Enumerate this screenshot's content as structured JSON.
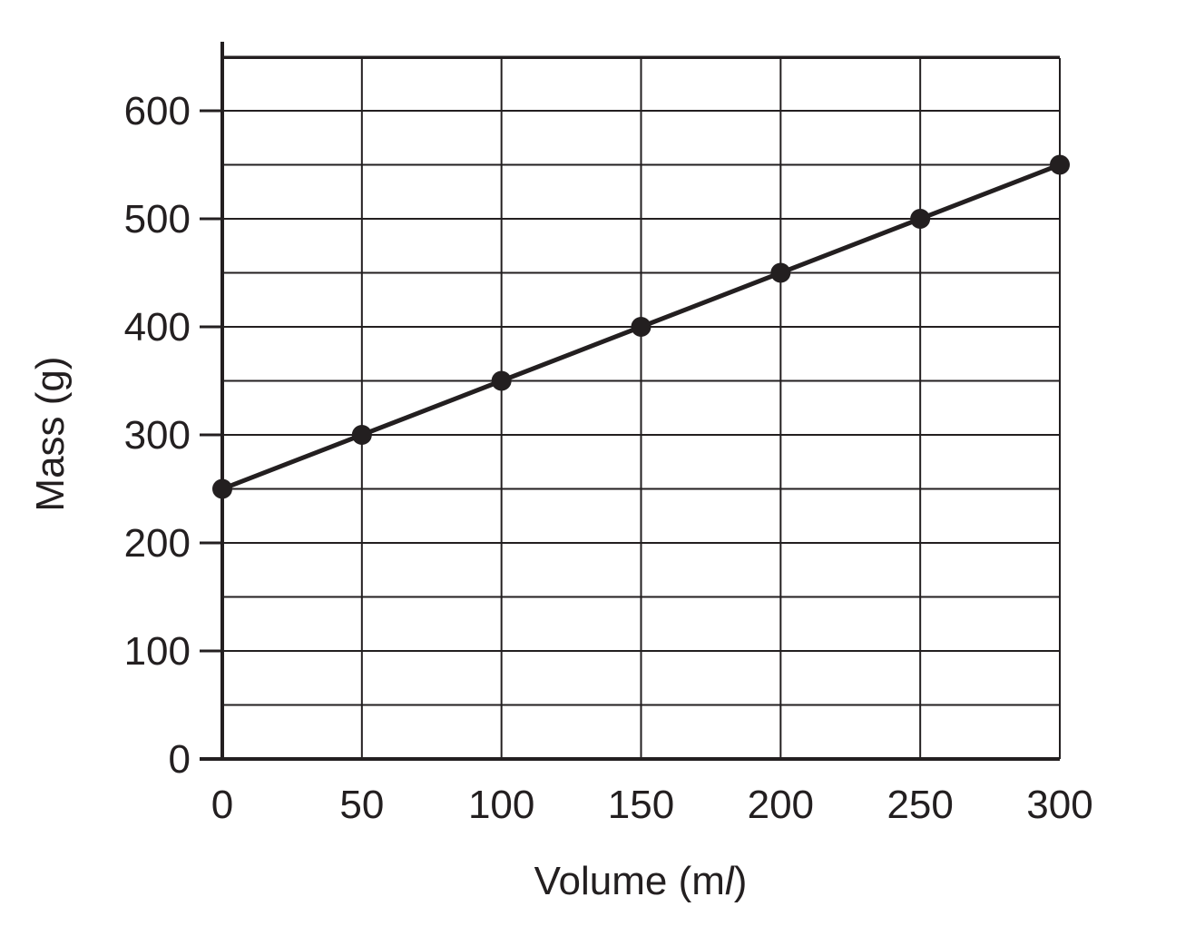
{
  "chart_data": {
    "type": "line",
    "title": "",
    "xlabel": "Volume (m",
    "xlabel_unit": "l",
    "xlabel_suffix": ")",
    "ylabel": "Mass (g)",
    "x": [
      0,
      50,
      100,
      150,
      200,
      250,
      300
    ],
    "x_ticks": [
      "0",
      "50",
      "100",
      "150",
      "200",
      "250",
      "300"
    ],
    "y_ticks": [
      "0",
      "100",
      "200",
      "300",
      "400",
      "500",
      "600"
    ],
    "xlim": [
      0,
      300
    ],
    "ylim": [
      0,
      600
    ],
    "grid": true,
    "series": [
      {
        "values": [
          250,
          300,
          350,
          400,
          450,
          500,
          550
        ],
        "color": "#231f20",
        "marker": "circle"
      }
    ]
  }
}
